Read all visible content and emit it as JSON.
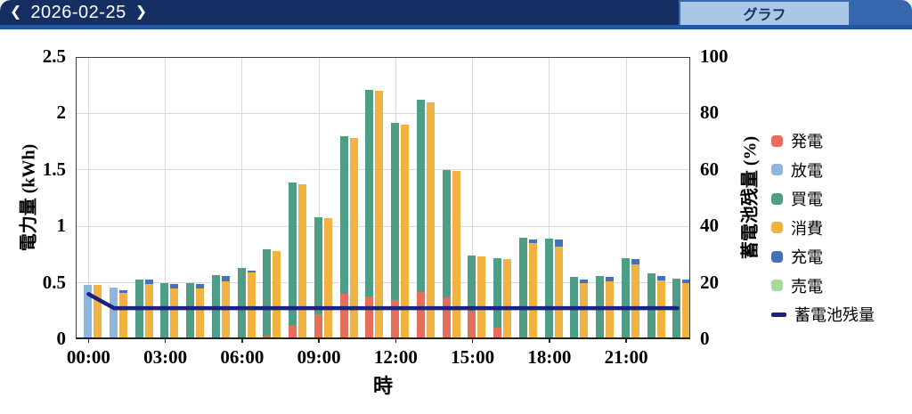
{
  "header": {
    "prev_chevron": "❮",
    "date": "2026-02-25",
    "next_chevron": "❯",
    "graph_tab_label": "グラフ"
  },
  "colors": {
    "header_bg": "#152f63",
    "header_strip": "#2257a5",
    "header_right_fill": "#3566ae",
    "tab_bg": "#abc7e8",
    "tab_text": "#14305e",
    "grid": "#d9d9d9",
    "frame": "#3f3f3f"
  },
  "chart_data": {
    "type": "bar",
    "title": "",
    "xlabel": "時",
    "ylabel_left": "電力量 (kWh)",
    "ylabel_right": "蓄電池残量 (%)",
    "ylim_left": [
      0,
      2.5
    ],
    "ylim_right": [
      0,
      100
    ],
    "yticks_left": [
      "0",
      "0.5",
      "1",
      "1.5",
      "2",
      "2.5"
    ],
    "yticks_right": [
      "0",
      "20",
      "40",
      "60",
      "80",
      "100"
    ],
    "xticks": [
      "00:00",
      "03:00",
      "06:00",
      "09:00",
      "12:00",
      "15:00",
      "18:00",
      "21:00"
    ],
    "xtick_hour_interval": 3,
    "hours": 24,
    "grid": true,
    "legend_position": "right",
    "bar_groups": {
      "supply_stack_order": [
        "発電",
        "放電",
        "買電"
      ],
      "demand_stack_order": [
        "消費",
        "充電",
        "売電"
      ]
    },
    "series": [
      {
        "name": "発電",
        "key": "generation",
        "color": "#e4705c",
        "type": "bar-supply",
        "values": [
          0,
          0,
          0,
          0,
          0,
          0,
          0,
          0.02,
          0.13,
          0.22,
          0.4,
          0.38,
          0.35,
          0.42,
          0.37,
          0.25,
          0.1,
          0,
          0,
          0,
          0,
          0,
          0,
          0
        ]
      },
      {
        "name": "放電",
        "key": "discharge",
        "color": "#8fb6da",
        "type": "bar-supply",
        "values": [
          0.48,
          0.46,
          0,
          0,
          0,
          0,
          0,
          0,
          0,
          0,
          0,
          0,
          0,
          0,
          0,
          0,
          0,
          0,
          0,
          0,
          0,
          0,
          0,
          0
        ]
      },
      {
        "name": "買電",
        "key": "grid-purchase",
        "color": "#4e9d86",
        "type": "bar-supply",
        "values": [
          0,
          0,
          0.53,
          0.5,
          0.5,
          0.57,
          0.63,
          0.78,
          1.26,
          0.86,
          1.4,
          1.83,
          1.57,
          1.7,
          1.13,
          0.49,
          0.62,
          0.9,
          0.89,
          0.55,
          0.56,
          0.72,
          0.58,
          0.54
        ]
      },
      {
        "name": "消費",
        "key": "consumption",
        "color": "#f0b240",
        "type": "bar-demand",
        "values": [
          0.48,
          0.41,
          0.49,
          0.45,
          0.45,
          0.51,
          0.59,
          0.78,
          1.37,
          1.07,
          1.78,
          2.2,
          1.9,
          2.1,
          1.49,
          0.73,
          0.71,
          0.85,
          0.82,
          0.5,
          0.51,
          0.66,
          0.52,
          0.5
        ]
      },
      {
        "name": "充電",
        "key": "charge",
        "color": "#4472b8",
        "type": "bar-demand",
        "values": [
          0,
          0.02,
          0.04,
          0.04,
          0.04,
          0.05,
          0.02,
          0,
          0,
          0,
          0,
          0,
          0,
          0,
          0,
          0,
          0,
          0.03,
          0.06,
          0.03,
          0.04,
          0.05,
          0.04,
          0.03
        ]
      },
      {
        "name": "売電",
        "key": "grid-sell",
        "color": "#a9d89a",
        "type": "bar-demand",
        "values": [
          0,
          0,
          0,
          0,
          0,
          0,
          0,
          0,
          0,
          0,
          0,
          0,
          0,
          0,
          0,
          0,
          0,
          0,
          0,
          0,
          0,
          0,
          0,
          0
        ]
      },
      {
        "name": "蓄電池残量",
        "key": "battery-level",
        "color": "#1a2380",
        "type": "line",
        "axis": "right",
        "values": [
          16,
          11,
          11,
          11,
          11,
          11,
          11,
          11,
          11,
          11,
          11,
          11,
          11,
          11,
          11,
          11,
          11,
          11,
          11,
          11,
          11,
          11,
          11,
          11
        ]
      }
    ]
  }
}
